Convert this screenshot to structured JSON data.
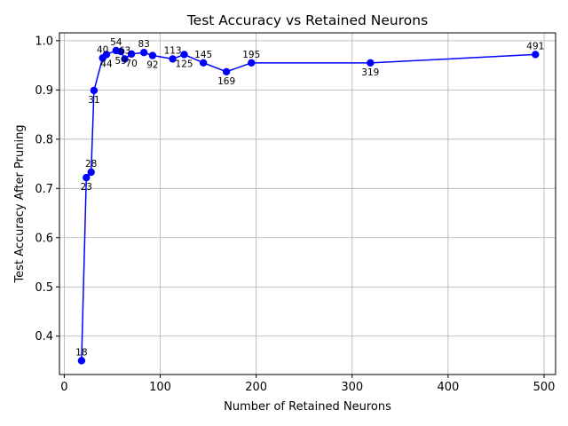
{
  "chart_data": {
    "type": "line",
    "title": "Test Accuracy vs Retained Neurons",
    "xlabel": "Number of  Retained Neurons",
    "ylabel": "Test Accuracy After Pruning",
    "xlim": [
      -5,
      512
    ],
    "ylim": [
      0.322,
      1.016
    ],
    "xticks": [
      0,
      100,
      200,
      300,
      400,
      500
    ],
    "yticks": [
      0.4,
      0.5,
      0.6,
      0.7,
      0.8,
      0.9,
      1.0
    ],
    "grid": true,
    "line_color": "#0000ff",
    "marker_color": "#0000ff",
    "series": [
      {
        "points": [
          {
            "x": 18,
            "y": 0.35,
            "label": "18",
            "label_pos": "above"
          },
          {
            "x": 23,
            "y": 0.722,
            "label": "23",
            "label_pos": "below"
          },
          {
            "x": 28,
            "y": 0.733,
            "label": "28",
            "label_pos": "above"
          },
          {
            "x": 31,
            "y": 0.899,
            "label": "31",
            "label_pos": "below"
          },
          {
            "x": 40,
            "y": 0.965,
            "label": "40",
            "label_pos": "above"
          },
          {
            "x": 44,
            "y": 0.972,
            "label": "44",
            "label_pos": "below"
          },
          {
            "x": 54,
            "y": 0.98,
            "label": "54",
            "label_pos": "above"
          },
          {
            "x": 59,
            "y": 0.978,
            "label": "59",
            "label_pos": "below"
          },
          {
            "x": 63,
            "y": 0.963,
            "label": "63",
            "label_pos": "above"
          },
          {
            "x": 70,
            "y": 0.973,
            "label": "70",
            "label_pos": "below"
          },
          {
            "x": 83,
            "y": 0.976,
            "label": "83",
            "label_pos": "above"
          },
          {
            "x": 92,
            "y": 0.97,
            "label": "92",
            "label_pos": "below"
          },
          {
            "x": 113,
            "y": 0.963,
            "label": "113",
            "label_pos": "above"
          },
          {
            "x": 125,
            "y": 0.972,
            "label": "125",
            "label_pos": "below"
          },
          {
            "x": 145,
            "y": 0.955,
            "label": "145",
            "label_pos": "above"
          },
          {
            "x": 169,
            "y": 0.937,
            "label": "169",
            "label_pos": "below"
          },
          {
            "x": 195,
            "y": 0.955,
            "label": "195",
            "label_pos": "above"
          },
          {
            "x": 319,
            "y": 0.955,
            "label": "319",
            "label_pos": "below"
          },
          {
            "x": 491,
            "y": 0.972,
            "label": "491",
            "label_pos": "above"
          }
        ]
      }
    ]
  }
}
